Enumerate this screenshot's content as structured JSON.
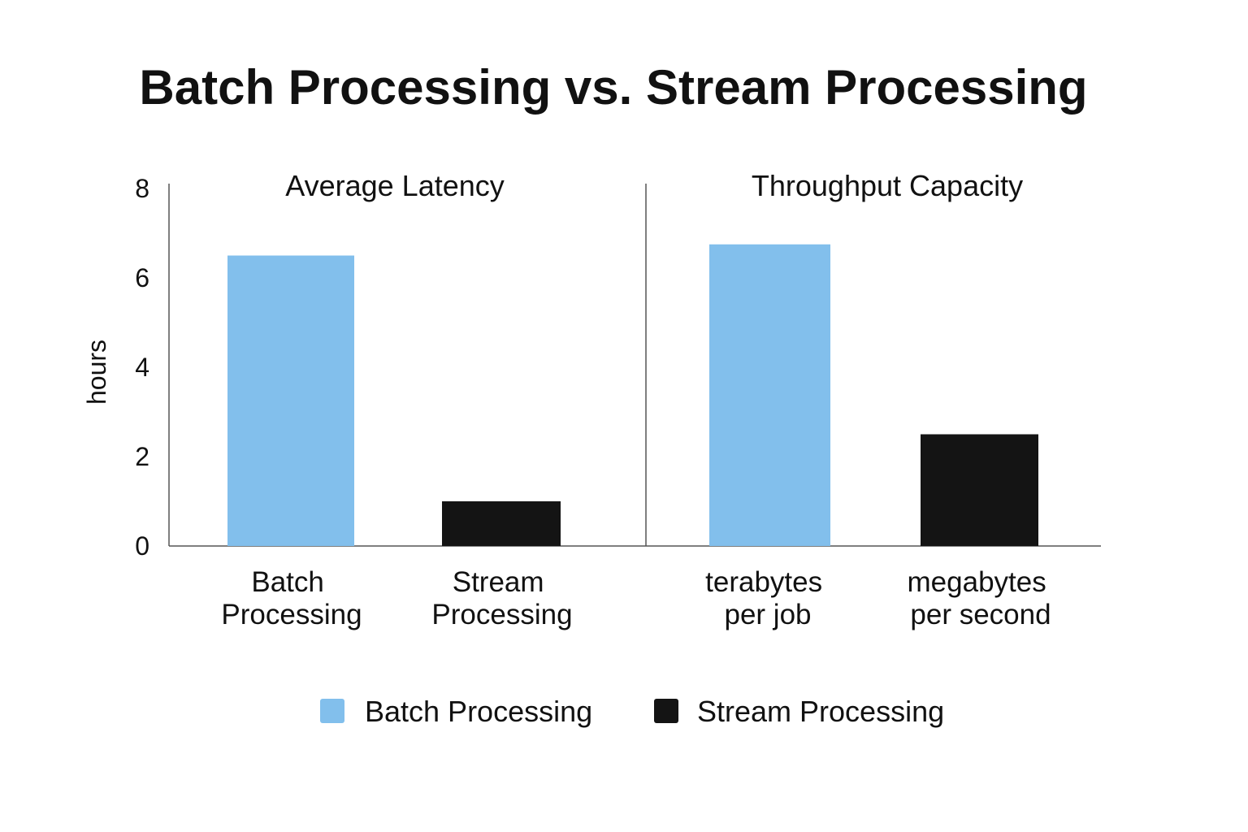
{
  "colors": {
    "batch": "#82bfec",
    "stream": "#141414",
    "axis": "#555555",
    "text": "#111111",
    "background": "#ffffff"
  },
  "chart_data": {
    "type": "bar",
    "title": "Batch Processing vs. Stream Processing",
    "ylabel": "hours",
    "ylim": [
      0,
      8
    ],
    "yticks": [
      "0",
      "2",
      "4",
      "6",
      "8"
    ],
    "grid": false,
    "legend_position": "bottom-center",
    "legend": [
      {
        "name": "Batch Processing",
        "color": "#82bfec"
      },
      {
        "name": "Stream Processing",
        "color": "#141414"
      }
    ],
    "panels": [
      {
        "title": "Average Latency",
        "categories": [
          [
            "Batch",
            "Processing"
          ],
          [
            "Stream",
            "Processing"
          ]
        ],
        "values": [
          6.5,
          1.0
        ],
        "series_of_bar": [
          "Batch Processing",
          "Stream Processing"
        ]
      },
      {
        "title": "Throughput Capacity",
        "categories": [
          [
            "terabytes",
            "per job"
          ],
          [
            "megabytes",
            "per second"
          ]
        ],
        "values": [
          6.75,
          2.5
        ],
        "series_of_bar": [
          "Batch Processing",
          "Stream Processing"
        ]
      }
    ]
  }
}
